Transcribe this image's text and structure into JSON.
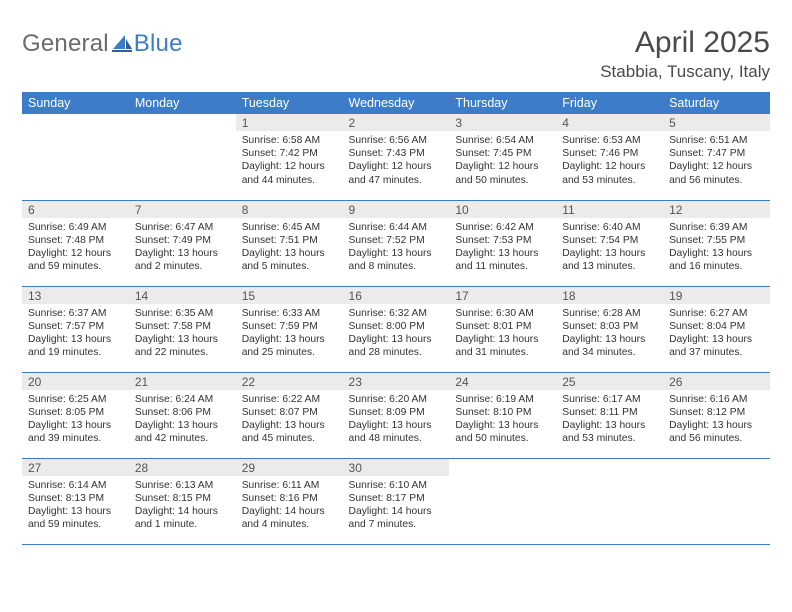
{
  "header": {
    "logo_general": "General",
    "logo_blue": "Blue",
    "month_title": "April 2025",
    "location": "Stabbia, Tuscany, Italy"
  },
  "colors": {
    "header_bg": "#3d7cc9",
    "header_fg": "#ffffff",
    "daynum_bg": "#ebebeb",
    "daynum_fg": "#555555",
    "body_bg": "#ffffff",
    "text": "#333333",
    "logo_gray": "#6b6b6b",
    "logo_blue": "#3d7cc9",
    "rule": "#3d7cc9"
  },
  "dayHeaders": [
    "Sunday",
    "Monday",
    "Tuesday",
    "Wednesday",
    "Thursday",
    "Friday",
    "Saturday"
  ],
  "grid": [
    [
      null,
      null,
      {
        "n": "1",
        "sr": "6:58 AM",
        "ss": "7:42 PM",
        "dl": "12 hours and 44 minutes."
      },
      {
        "n": "2",
        "sr": "6:56 AM",
        "ss": "7:43 PM",
        "dl": "12 hours and 47 minutes."
      },
      {
        "n": "3",
        "sr": "6:54 AM",
        "ss": "7:45 PM",
        "dl": "12 hours and 50 minutes."
      },
      {
        "n": "4",
        "sr": "6:53 AM",
        "ss": "7:46 PM",
        "dl": "12 hours and 53 minutes."
      },
      {
        "n": "5",
        "sr": "6:51 AM",
        "ss": "7:47 PM",
        "dl": "12 hours and 56 minutes."
      }
    ],
    [
      {
        "n": "6",
        "sr": "6:49 AM",
        "ss": "7:48 PM",
        "dl": "12 hours and 59 minutes."
      },
      {
        "n": "7",
        "sr": "6:47 AM",
        "ss": "7:49 PM",
        "dl": "13 hours and 2 minutes."
      },
      {
        "n": "8",
        "sr": "6:45 AM",
        "ss": "7:51 PM",
        "dl": "13 hours and 5 minutes."
      },
      {
        "n": "9",
        "sr": "6:44 AM",
        "ss": "7:52 PM",
        "dl": "13 hours and 8 minutes."
      },
      {
        "n": "10",
        "sr": "6:42 AM",
        "ss": "7:53 PM",
        "dl": "13 hours and 11 minutes."
      },
      {
        "n": "11",
        "sr": "6:40 AM",
        "ss": "7:54 PM",
        "dl": "13 hours and 13 minutes."
      },
      {
        "n": "12",
        "sr": "6:39 AM",
        "ss": "7:55 PM",
        "dl": "13 hours and 16 minutes."
      }
    ],
    [
      {
        "n": "13",
        "sr": "6:37 AM",
        "ss": "7:57 PM",
        "dl": "13 hours and 19 minutes."
      },
      {
        "n": "14",
        "sr": "6:35 AM",
        "ss": "7:58 PM",
        "dl": "13 hours and 22 minutes."
      },
      {
        "n": "15",
        "sr": "6:33 AM",
        "ss": "7:59 PM",
        "dl": "13 hours and 25 minutes."
      },
      {
        "n": "16",
        "sr": "6:32 AM",
        "ss": "8:00 PM",
        "dl": "13 hours and 28 minutes."
      },
      {
        "n": "17",
        "sr": "6:30 AM",
        "ss": "8:01 PM",
        "dl": "13 hours and 31 minutes."
      },
      {
        "n": "18",
        "sr": "6:28 AM",
        "ss": "8:03 PM",
        "dl": "13 hours and 34 minutes."
      },
      {
        "n": "19",
        "sr": "6:27 AM",
        "ss": "8:04 PM",
        "dl": "13 hours and 37 minutes."
      }
    ],
    [
      {
        "n": "20",
        "sr": "6:25 AM",
        "ss": "8:05 PM",
        "dl": "13 hours and 39 minutes."
      },
      {
        "n": "21",
        "sr": "6:24 AM",
        "ss": "8:06 PM",
        "dl": "13 hours and 42 minutes."
      },
      {
        "n": "22",
        "sr": "6:22 AM",
        "ss": "8:07 PM",
        "dl": "13 hours and 45 minutes."
      },
      {
        "n": "23",
        "sr": "6:20 AM",
        "ss": "8:09 PM",
        "dl": "13 hours and 48 minutes."
      },
      {
        "n": "24",
        "sr": "6:19 AM",
        "ss": "8:10 PM",
        "dl": "13 hours and 50 minutes."
      },
      {
        "n": "25",
        "sr": "6:17 AM",
        "ss": "8:11 PM",
        "dl": "13 hours and 53 minutes."
      },
      {
        "n": "26",
        "sr": "6:16 AM",
        "ss": "8:12 PM",
        "dl": "13 hours and 56 minutes."
      }
    ],
    [
      {
        "n": "27",
        "sr": "6:14 AM",
        "ss": "8:13 PM",
        "dl": "13 hours and 59 minutes."
      },
      {
        "n": "28",
        "sr": "6:13 AM",
        "ss": "8:15 PM",
        "dl": "14 hours and 1 minute."
      },
      {
        "n": "29",
        "sr": "6:11 AM",
        "ss": "8:16 PM",
        "dl": "14 hours and 4 minutes."
      },
      {
        "n": "30",
        "sr": "6:10 AM",
        "ss": "8:17 PM",
        "dl": "14 hours and 7 minutes."
      },
      null,
      null,
      null
    ]
  ],
  "labels": {
    "sunrise": "Sunrise: ",
    "sunset": "Sunset: ",
    "daylight": "Daylight: "
  }
}
